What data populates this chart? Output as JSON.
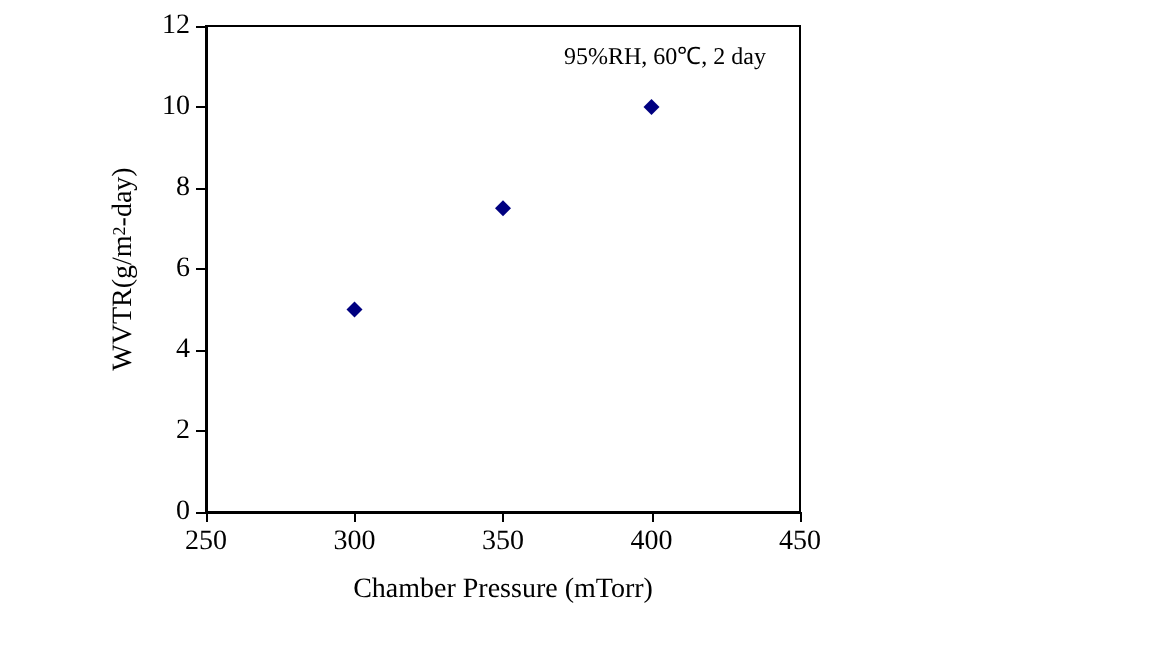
{
  "chart_data": {
    "type": "scatter",
    "xlabel": "Chamber Pressure (mTorr)",
    "ylabel": "WVTR(g/m$^{2}$-day)",
    "annotations": [
      "95%RH, 60℃, 2 day"
    ],
    "x": [
      300,
      350,
      400
    ],
    "series": [
      {
        "color": "#000080",
        "values": [
          5,
          7.5,
          10
        ]
      }
    ],
    "xlim": [
      250,
      450
    ],
    "xticks": [
      250,
      300,
      350,
      400,
      450
    ],
    "ylim": [
      0,
      12
    ],
    "yticks": [
      0,
      2,
      4,
      6,
      8,
      10,
      12
    ],
    "marker": "diamond",
    "grid": false
  }
}
